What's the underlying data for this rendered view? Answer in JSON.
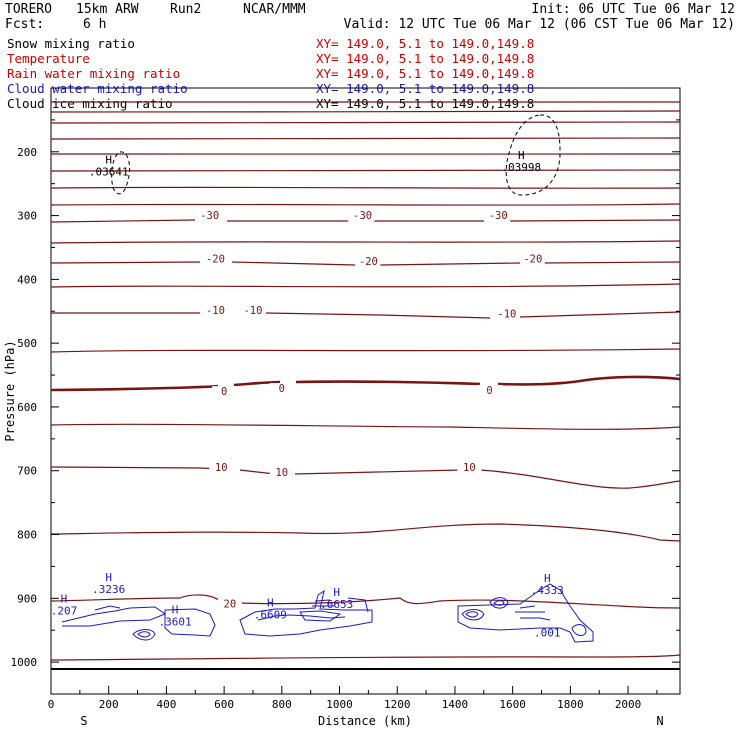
{
  "header": {
    "model": "TORERO",
    "resolution": "15km ARW",
    "run": "Run2",
    "org": "NCAR/MMM",
    "init": "Init: 06 UTC Tue 06 Mar 12",
    "fcst_label": "Fcst:",
    "fcst_value": "6 h",
    "valid": "Valid: 12 UTC Tue 06 Mar 12 (06 CST Tue 06 Mar 12)"
  },
  "legend": [
    {
      "name": "Snow mixing ratio",
      "xy": "XY= 149.0,  5.1 to 149.0,149.8",
      "color": "#000000"
    },
    {
      "name": "Temperature",
      "xy": "XY= 149.0,  5.1 to 149.0,149.8",
      "color": "#cc0000"
    },
    {
      "name": "Rain water mixing ratio",
      "xy": "XY= 149.0,  5.1 to 149.0,149.8",
      "color": "#cc0000"
    },
    {
      "name": "Cloud water mixing ratio",
      "xy": "XY= 149.0,  5.1 to 149.0,149.8",
      "color": "#1a1ac8"
    },
    {
      "name": "Cloud ice mixing ratio",
      "xy": "XY= 149.0,  5.1 to 149.0,149.8",
      "color": "#000000"
    }
  ],
  "chart_data": {
    "type": "contour",
    "xlabel": "Distance (km)",
    "ylabel": "Pressure (hPa)",
    "xlim": [
      0,
      2180
    ],
    "ylim": [
      1050,
      100
    ],
    "x_ticks": [
      0,
      200,
      400,
      600,
      800,
      1000,
      1200,
      1400,
      1600,
      1800,
      2000
    ],
    "y_ticks": [
      200,
      300,
      400,
      500,
      600,
      700,
      800,
      900,
      1000
    ],
    "x_end_labels": {
      "left": "S",
      "right": "N"
    },
    "temperature_contour_labels": [
      {
        "x": 550,
        "p": 304,
        "text": "-30"
      },
      {
        "x": 1080,
        "p": 304,
        "text": "-30"
      },
      {
        "x": 1550,
        "p": 304,
        "text": "-30"
      },
      {
        "x": 570,
        "p": 372,
        "text": "-20"
      },
      {
        "x": 1100,
        "p": 376,
        "text": "-20"
      },
      {
        "x": 1670,
        "p": 372,
        "text": "-20"
      },
      {
        "x": 570,
        "p": 453,
        "text": "-10"
      },
      {
        "x": 700,
        "p": 453,
        "text": "-10"
      },
      {
        "x": 1580,
        "p": 458,
        "text": "-10"
      },
      {
        "x": 600,
        "p": 580,
        "text": "0"
      },
      {
        "x": 800,
        "p": 575,
        "text": "0"
      },
      {
        "x": 1520,
        "p": 578,
        "text": "0"
      },
      {
        "x": 590,
        "p": 699,
        "text": "10"
      },
      {
        "x": 800,
        "p": 707,
        "text": "10"
      },
      {
        "x": 1450,
        "p": 699,
        "text": "10"
      },
      {
        "x": 620,
        "p": 913,
        "text": "20"
      }
    ],
    "extrema_labels": [
      {
        "x": 200,
        "p": 237,
        "h": "H",
        "value": ".03641",
        "color": "#000000"
      },
      {
        "x": 1630,
        "p": 230,
        "h": "H",
        "value": ".03998",
        "color": "#000000"
      },
      {
        "x": 200,
        "p": 892,
        "h": "H",
        "value": ".3236",
        "color": "#1a1ac8"
      },
      {
        "x": 45,
        "p": 925,
        "h": "H",
        "value": ".207",
        "color": "#1a1ac8"
      },
      {
        "x": 430,
        "p": 943,
        "h": "H",
        "value": ".3601",
        "color": "#1a1ac8"
      },
      {
        "x": 760,
        "p": 932,
        "h": "H",
        "value": ".6609",
        "color": "#1a1ac8"
      },
      {
        "x": 990,
        "p": 915,
        "h": "H",
        "value": ".6653",
        "color": "#1a1ac8"
      },
      {
        "x": 1720,
        "p": 893,
        "h": "H",
        "value": ".4333",
        "color": "#1a1ac8"
      },
      {
        "x": 1720,
        "p": 960,
        "h": "",
        "value": ".001",
        "color": "#1a1ac8"
      }
    ]
  }
}
